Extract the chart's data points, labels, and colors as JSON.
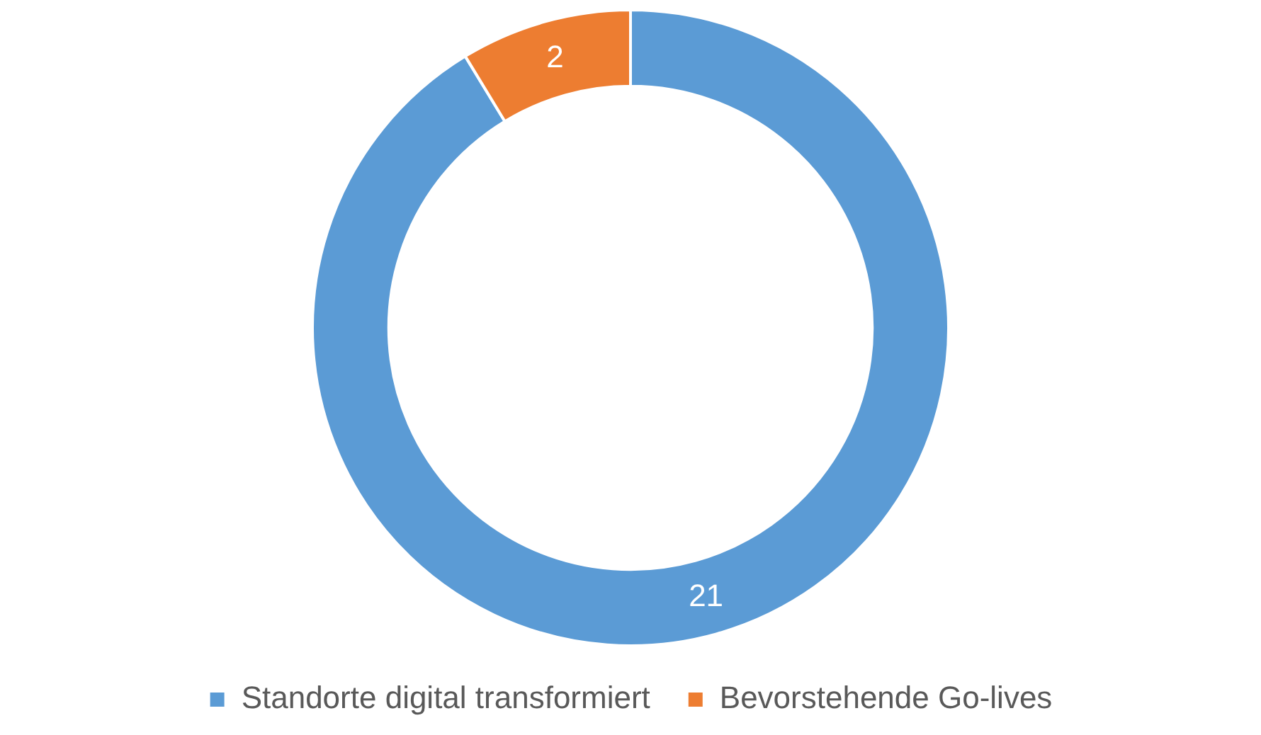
{
  "chart_data": {
    "type": "donut",
    "categories": [
      "Standorte digital transformiert",
      "Bevorstehende Go-lives"
    ],
    "values": [
      21,
      2
    ],
    "colors": [
      "#5b9bd5",
      "#ed7d31"
    ],
    "data_labels": true,
    "legend": "bottom"
  }
}
